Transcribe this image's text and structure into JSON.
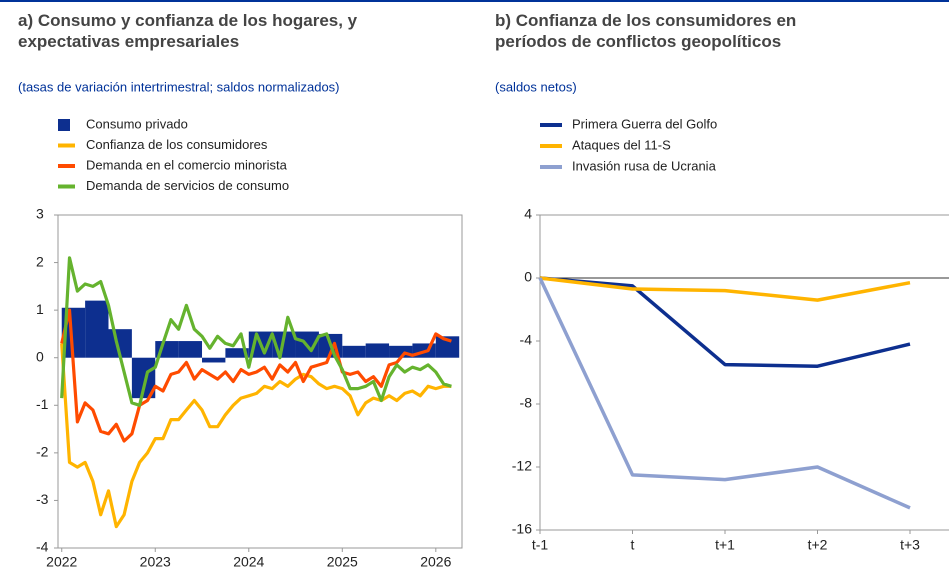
{
  "chart_data": [
    {
      "type": "combo",
      "title": "a) Consumo y confianza de los hogares, y expectativas empresariales",
      "subtitle": "(tasas de variación intertrimestral; saldos normalizados)",
      "xlim": [
        2021.96,
        2026.28
      ],
      "xticks": [
        2022,
        2023,
        2024,
        2025,
        2026
      ],
      "ylim": [
        -4,
        3
      ],
      "yticks": [
        -4,
        -3,
        -2,
        -1,
        0,
        1,
        2,
        3
      ],
      "series": [
        {
          "name": "Consumo privado",
          "type": "bar",
          "color": "#0d2f8f",
          "x": [
            2022.125,
            2022.375,
            2022.625,
            2022.875,
            2023.125,
            2023.375,
            2023.625,
            2023.875,
            2024.125,
            2024.375,
            2024.625,
            2024.875,
            2025.125,
            2025.375,
            2025.625,
            2025.875,
            2026.125
          ],
          "values": [
            1.05,
            1.2,
            0.6,
            -0.85,
            0.35,
            0.35,
            -0.1,
            0.2,
            0.55,
            0.55,
            0.55,
            0.5,
            0.25,
            0.3,
            0.25,
            0.3,
            0.45
          ]
        },
        {
          "name": "Confianza de los consumidores",
          "type": "line",
          "color": "#ffb400",
          "x": [
            2022,
            2022.083,
            2022.167,
            2022.25,
            2022.333,
            2022.417,
            2022.5,
            2022.583,
            2022.667,
            2022.75,
            2022.833,
            2022.917,
            2023,
            2023.083,
            2023.167,
            2023.25,
            2023.333,
            2023.417,
            2023.5,
            2023.583,
            2023.667,
            2023.75,
            2023.833,
            2023.917,
            2024,
            2024.083,
            2024.167,
            2024.25,
            2024.333,
            2024.417,
            2024.5,
            2024.583,
            2024.667,
            2024.75,
            2024.833,
            2024.917,
            2025,
            2025.083,
            2025.167,
            2025.25,
            2025.333,
            2025.417,
            2025.5,
            2025.583,
            2025.667,
            2025.75,
            2025.833,
            2025.917,
            2026,
            2026.083,
            2026.167
          ],
          "values": [
            0.3,
            -2.2,
            -2.3,
            -2.2,
            -2.6,
            -3.3,
            -2.8,
            -3.55,
            -3.3,
            -2.6,
            -2.2,
            -2.0,
            -1.7,
            -1.7,
            -1.3,
            -1.3,
            -1.1,
            -0.9,
            -1.1,
            -1.45,
            -1.45,
            -1.2,
            -1.0,
            -0.85,
            -0.8,
            -0.75,
            -0.6,
            -0.65,
            -0.5,
            -0.6,
            -0.45,
            -0.35,
            -0.4,
            -0.55,
            -0.65,
            -0.6,
            -0.65,
            -0.8,
            -1.2,
            -0.95,
            -0.85,
            -0.9,
            -0.8,
            -0.9,
            -0.75,
            -0.7,
            -0.8,
            -0.6,
            -0.65,
            -0.6,
            -0.6
          ]
        },
        {
          "name": "Demanda en el comercio minorista",
          "type": "line",
          "color": "#ff4b00",
          "x": [
            2022,
            2022.083,
            2022.167,
            2022.25,
            2022.333,
            2022.417,
            2022.5,
            2022.583,
            2022.667,
            2022.75,
            2022.833,
            2022.917,
            2023,
            2023.083,
            2023.167,
            2023.25,
            2023.333,
            2023.417,
            2023.5,
            2023.583,
            2023.667,
            2023.75,
            2023.833,
            2023.917,
            2024,
            2024.083,
            2024.167,
            2024.25,
            2024.333,
            2024.417,
            2024.5,
            2024.583,
            2024.667,
            2024.75,
            2024.833,
            2024.917,
            2025,
            2025.083,
            2025.167,
            2025.25,
            2025.333,
            2025.417,
            2025.5,
            2025.583,
            2025.667,
            2025.75,
            2025.833,
            2025.917,
            2026,
            2026.083,
            2026.167
          ],
          "values": [
            0.3,
            1.0,
            -1.35,
            -0.95,
            -1.1,
            -1.55,
            -1.6,
            -1.4,
            -1.75,
            -1.6,
            -1.0,
            -0.9,
            -0.6,
            -0.7,
            -0.35,
            -0.3,
            -0.1,
            -0.45,
            -0.25,
            -0.35,
            -0.45,
            -0.3,
            -0.5,
            -0.25,
            -0.35,
            -0.3,
            -0.2,
            -0.45,
            -0.15,
            -0.3,
            -0.1,
            -0.5,
            -0.2,
            -0.15,
            -0.1,
            0.3,
            -0.3,
            -0.35,
            -0.3,
            -0.5,
            -0.4,
            -0.6,
            -0.15,
            -0.1,
            0.1,
            0.05,
            0.1,
            0.15,
            0.5,
            0.4,
            0.35
          ]
        },
        {
          "name": "Demanda de servicios de consumo",
          "type": "line",
          "color": "#65b32e",
          "x": [
            2022,
            2022.083,
            2022.167,
            2022.25,
            2022.333,
            2022.417,
            2022.5,
            2022.583,
            2022.667,
            2022.75,
            2022.833,
            2022.917,
            2023,
            2023.083,
            2023.167,
            2023.25,
            2023.333,
            2023.417,
            2023.5,
            2023.583,
            2023.667,
            2023.75,
            2023.833,
            2023.917,
            2024,
            2024.083,
            2024.167,
            2024.25,
            2024.333,
            2024.417,
            2024.5,
            2024.583,
            2024.667,
            2024.75,
            2024.833,
            2024.917,
            2025,
            2025.083,
            2025.167,
            2025.25,
            2025.333,
            2025.417,
            2025.5,
            2025.583,
            2025.667,
            2025.75,
            2025.833,
            2025.917,
            2026,
            2026.083,
            2026.167
          ],
          "values": [
            -0.85,
            2.1,
            1.4,
            1.55,
            1.5,
            1.6,
            1.1,
            0.35,
            -0.3,
            -0.95,
            -1.0,
            -0.3,
            -0.2,
            0.3,
            0.8,
            0.6,
            1.1,
            0.6,
            0.45,
            0.2,
            0.45,
            0.3,
            0.25,
            0.5,
            -0.2,
            0.5,
            0.1,
            0.5,
            0.0,
            0.85,
            0.4,
            0.35,
            0.15,
            0.45,
            0.5,
            0.05,
            -0.25,
            -0.65,
            -0.65,
            -0.6,
            -0.5,
            -0.9,
            -0.4,
            -0.15,
            -0.3,
            -0.2,
            -0.25,
            -0.15,
            -0.3,
            -0.55,
            -0.6
          ]
        }
      ]
    },
    {
      "type": "line",
      "title": "b) Confianza de los consumidores en períodos de conflictos geopolíticos",
      "subtitle": "(saldos netos)",
      "categories": [
        "t-1",
        "t",
        "t+1",
        "t+2",
        "t+3"
      ],
      "ylim": [
        -16,
        4
      ],
      "yticks": [
        -16,
        -12,
        -8,
        -4,
        0,
        4
      ],
      "zero_line": true,
      "series": [
        {
          "name": "Primera Guerra del Golfo",
          "color": "#0d2f8f",
          "values": [
            0,
            -0.5,
            -5.5,
            -5.6,
            -4.2
          ]
        },
        {
          "name": "Ataques del 11-S",
          "color": "#ffb400",
          "values": [
            0,
            -0.7,
            -0.8,
            -1.4,
            -0.3
          ]
        },
        {
          "name": "Invasión rusa de Ucrania",
          "color": "#8ea0d0",
          "values": [
            0,
            -12.5,
            -12.8,
            -12.0,
            -14.6
          ]
        }
      ]
    }
  ]
}
